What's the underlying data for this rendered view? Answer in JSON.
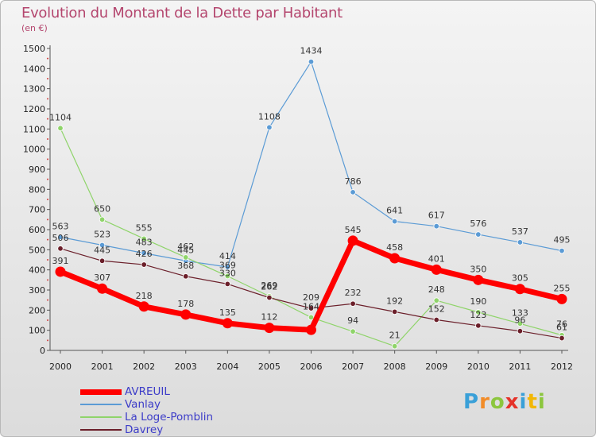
{
  "header": {
    "title": "Evolution du Montant de la Dette par Habitant",
    "subtitle": "(en €)"
  },
  "logo": {
    "text": "Proxiti",
    "letters": [
      {
        "ch": "P",
        "color": "#3aa0d8"
      },
      {
        "ch": "r",
        "color": "#f28c28"
      },
      {
        "ch": "o",
        "color": "#8cc63e"
      },
      {
        "ch": "x",
        "color": "#e5332a"
      },
      {
        "ch": "i",
        "color": "#3aa0d8"
      },
      {
        "ch": "t",
        "color": "#f2b705"
      },
      {
        "ch": "i",
        "color": "#8cc63e"
      }
    ]
  },
  "chart_data": {
    "type": "line",
    "title": "Evolution du Montant de la Dette par Habitant",
    "subtitle": "(en €)",
    "xlabel": "",
    "ylabel": "",
    "ylim": [
      0,
      1500
    ],
    "yticks": [
      0,
      100,
      200,
      300,
      400,
      500,
      600,
      700,
      800,
      900,
      1000,
      1100,
      1200,
      1300,
      1400,
      1500
    ],
    "x": [
      "2000",
      "2001",
      "2002",
      "2003",
      "2004",
      "2005",
      "2006",
      "2007",
      "2008",
      "2009",
      "2010",
      "2011",
      "2012"
    ],
    "grid": false,
    "legend_position": "bottom-left",
    "series": [
      {
        "name": "Vanlay",
        "color": "#5b9bd5",
        "values": [
          563,
          523,
          483,
          445,
          414,
          1108,
          1434,
          786,
          641,
          617,
          576,
          537,
          495
        ]
      },
      {
        "name": "La Loge-Pomblin",
        "color": "#8fd46a",
        "values": [
          1104,
          650,
          555,
          462,
          369,
          269,
          164,
          94,
          21,
          248,
          190,
          133,
          76
        ]
      },
      {
        "name": "Davrey",
        "color": "#6b1f2a",
        "values": [
          506,
          445,
          426,
          368,
          330,
          262,
          209,
          232,
          192,
          152,
          123,
          96,
          61
        ]
      },
      {
        "name": "AVREUIL",
        "color": "#ff0000",
        "values": [
          391,
          307,
          218,
          178,
          135,
          112,
          102,
          545,
          458,
          401,
          350,
          305,
          255
        ],
        "point_labels": [
          "391",
          "307",
          "218",
          "178",
          "135",
          "112",
          "",
          "545",
          "458",
          "401",
          "350",
          "305",
          "255"
        ]
      }
    ],
    "legend_order": [
      "AVREUIL",
      "Vanlay",
      "La Loge-Pomblin",
      "Davrey"
    ]
  }
}
